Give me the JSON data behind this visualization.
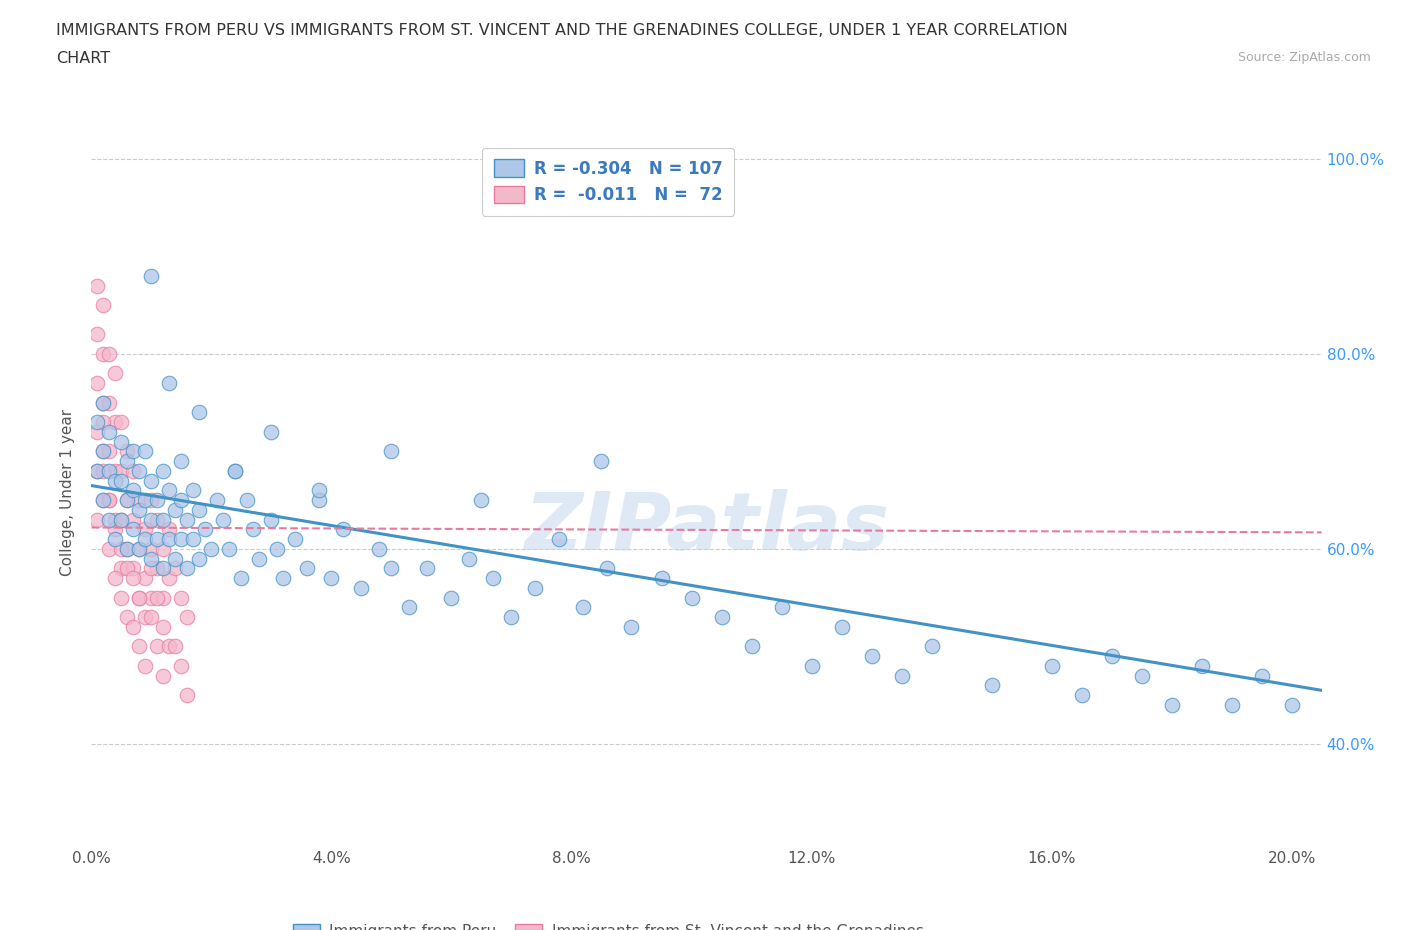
{
  "title_line1": "IMMIGRANTS FROM PERU VS IMMIGRANTS FROM ST. VINCENT AND THE GRENADINES COLLEGE, UNDER 1 YEAR CORRELATION",
  "title_line2": "CHART",
  "source": "Source: ZipAtlas.com",
  "ylabel": "College, Under 1 year",
  "xlim": [
    0.0,
    0.205
  ],
  "ylim": [
    0.295,
    1.02
  ],
  "xticks": [
    0.0,
    0.04,
    0.08,
    0.12,
    0.16,
    0.2
  ],
  "xticklabels": [
    "0.0%",
    "4.0%",
    "8.0%",
    "12.0%",
    "16.0%",
    "20.0%"
  ],
  "yticks": [
    0.4,
    0.6,
    0.8,
    1.0
  ],
  "yticklabels": [
    "40.0%",
    "60.0%",
    "80.0%",
    "100.0%"
  ],
  "watermark": "ZIPatlas",
  "peru_color": "#aec6e8",
  "peru_edge": "#4292c6",
  "svg_color": "#f4b8cb",
  "svg_edge": "#e87aa0",
  "peru_R": "-0.304",
  "peru_N": "107",
  "svg_R": "-0.011",
  "svg_N": "72",
  "legend_label_peru": "Immigrants from Peru",
  "legend_label_svg": "Immigrants from St. Vincent and the Grenadines",
  "peru_trend_x": [
    0.0,
    0.205
  ],
  "peru_trend_y": [
    0.665,
    0.455
  ],
  "svg_trend_x": [
    0.0,
    0.205
  ],
  "svg_trend_y": [
    0.622,
    0.617
  ],
  "background_color": "#ffffff",
  "grid_color": "#cccccc",
  "title_color": "#333333",
  "axis_label_color": "#555555",
  "legend_r_color": "#3a7abf",
  "right_axis_color": "#3a9aff",
  "peru_scatter_x": [
    0.001,
    0.001,
    0.002,
    0.002,
    0.002,
    0.003,
    0.003,
    0.003,
    0.004,
    0.004,
    0.005,
    0.005,
    0.005,
    0.006,
    0.006,
    0.006,
    0.007,
    0.007,
    0.007,
    0.008,
    0.008,
    0.008,
    0.009,
    0.009,
    0.009,
    0.01,
    0.01,
    0.01,
    0.011,
    0.011,
    0.012,
    0.012,
    0.012,
    0.013,
    0.013,
    0.014,
    0.014,
    0.015,
    0.015,
    0.015,
    0.016,
    0.016,
    0.017,
    0.017,
    0.018,
    0.018,
    0.019,
    0.02,
    0.021,
    0.022,
    0.023,
    0.024,
    0.025,
    0.026,
    0.027,
    0.028,
    0.03,
    0.031,
    0.032,
    0.034,
    0.036,
    0.038,
    0.04,
    0.042,
    0.045,
    0.048,
    0.05,
    0.053,
    0.056,
    0.06,
    0.063,
    0.067,
    0.07,
    0.074,
    0.078,
    0.082,
    0.086,
    0.09,
    0.095,
    0.1,
    0.105,
    0.11,
    0.115,
    0.12,
    0.125,
    0.13,
    0.135,
    0.14,
    0.15,
    0.16,
    0.165,
    0.17,
    0.175,
    0.18,
    0.185,
    0.19,
    0.195,
    0.2,
    0.01,
    0.013,
    0.018,
    0.024,
    0.03,
    0.038,
    0.05,
    0.065,
    0.085
  ],
  "peru_scatter_y": [
    0.68,
    0.73,
    0.65,
    0.7,
    0.75,
    0.63,
    0.68,
    0.72,
    0.61,
    0.67,
    0.63,
    0.67,
    0.71,
    0.6,
    0.65,
    0.69,
    0.62,
    0.66,
    0.7,
    0.6,
    0.64,
    0.68,
    0.61,
    0.65,
    0.7,
    0.59,
    0.63,
    0.67,
    0.61,
    0.65,
    0.58,
    0.63,
    0.68,
    0.61,
    0.66,
    0.59,
    0.64,
    0.61,
    0.65,
    0.69,
    0.58,
    0.63,
    0.61,
    0.66,
    0.59,
    0.64,
    0.62,
    0.6,
    0.65,
    0.63,
    0.6,
    0.68,
    0.57,
    0.65,
    0.62,
    0.59,
    0.63,
    0.6,
    0.57,
    0.61,
    0.58,
    0.65,
    0.57,
    0.62,
    0.56,
    0.6,
    0.58,
    0.54,
    0.58,
    0.55,
    0.59,
    0.57,
    0.53,
    0.56,
    0.61,
    0.54,
    0.58,
    0.52,
    0.57,
    0.55,
    0.53,
    0.5,
    0.54,
    0.48,
    0.52,
    0.49,
    0.47,
    0.5,
    0.46,
    0.48,
    0.45,
    0.49,
    0.47,
    0.44,
    0.48,
    0.44,
    0.47,
    0.44,
    0.88,
    0.77,
    0.74,
    0.68,
    0.72,
    0.66,
    0.7,
    0.65,
    0.69
  ],
  "svg_scatter_x": [
    0.001,
    0.001,
    0.001,
    0.001,
    0.002,
    0.002,
    0.002,
    0.002,
    0.002,
    0.003,
    0.003,
    0.003,
    0.003,
    0.004,
    0.004,
    0.004,
    0.004,
    0.005,
    0.005,
    0.005,
    0.005,
    0.006,
    0.006,
    0.006,
    0.007,
    0.007,
    0.007,
    0.008,
    0.008,
    0.008,
    0.009,
    0.009,
    0.01,
    0.01,
    0.01,
    0.011,
    0.011,
    0.012,
    0.012,
    0.013,
    0.013,
    0.014,
    0.015,
    0.016,
    0.001,
    0.001,
    0.002,
    0.002,
    0.003,
    0.003,
    0.004,
    0.004,
    0.005,
    0.005,
    0.006,
    0.006,
    0.007,
    0.007,
    0.008,
    0.008,
    0.009,
    0.009,
    0.01,
    0.01,
    0.011,
    0.011,
    0.012,
    0.012,
    0.013,
    0.014,
    0.015,
    0.016
  ],
  "svg_scatter_y": [
    0.87,
    0.82,
    0.77,
    0.72,
    0.85,
    0.8,
    0.75,
    0.7,
    0.65,
    0.8,
    0.75,
    0.7,
    0.65,
    0.78,
    0.73,
    0.68,
    0.63,
    0.73,
    0.68,
    0.63,
    0.58,
    0.7,
    0.65,
    0.6,
    0.68,
    0.63,
    0.58,
    0.65,
    0.6,
    0.55,
    0.62,
    0.57,
    0.65,
    0.6,
    0.55,
    0.63,
    0.58,
    0.6,
    0.55,
    0.62,
    0.57,
    0.58,
    0.55,
    0.53,
    0.68,
    0.63,
    0.73,
    0.68,
    0.65,
    0.6,
    0.62,
    0.57,
    0.6,
    0.55,
    0.58,
    0.53,
    0.57,
    0.52,
    0.55,
    0.5,
    0.53,
    0.48,
    0.58,
    0.53,
    0.55,
    0.5,
    0.52,
    0.47,
    0.5,
    0.5,
    0.48,
    0.45
  ]
}
